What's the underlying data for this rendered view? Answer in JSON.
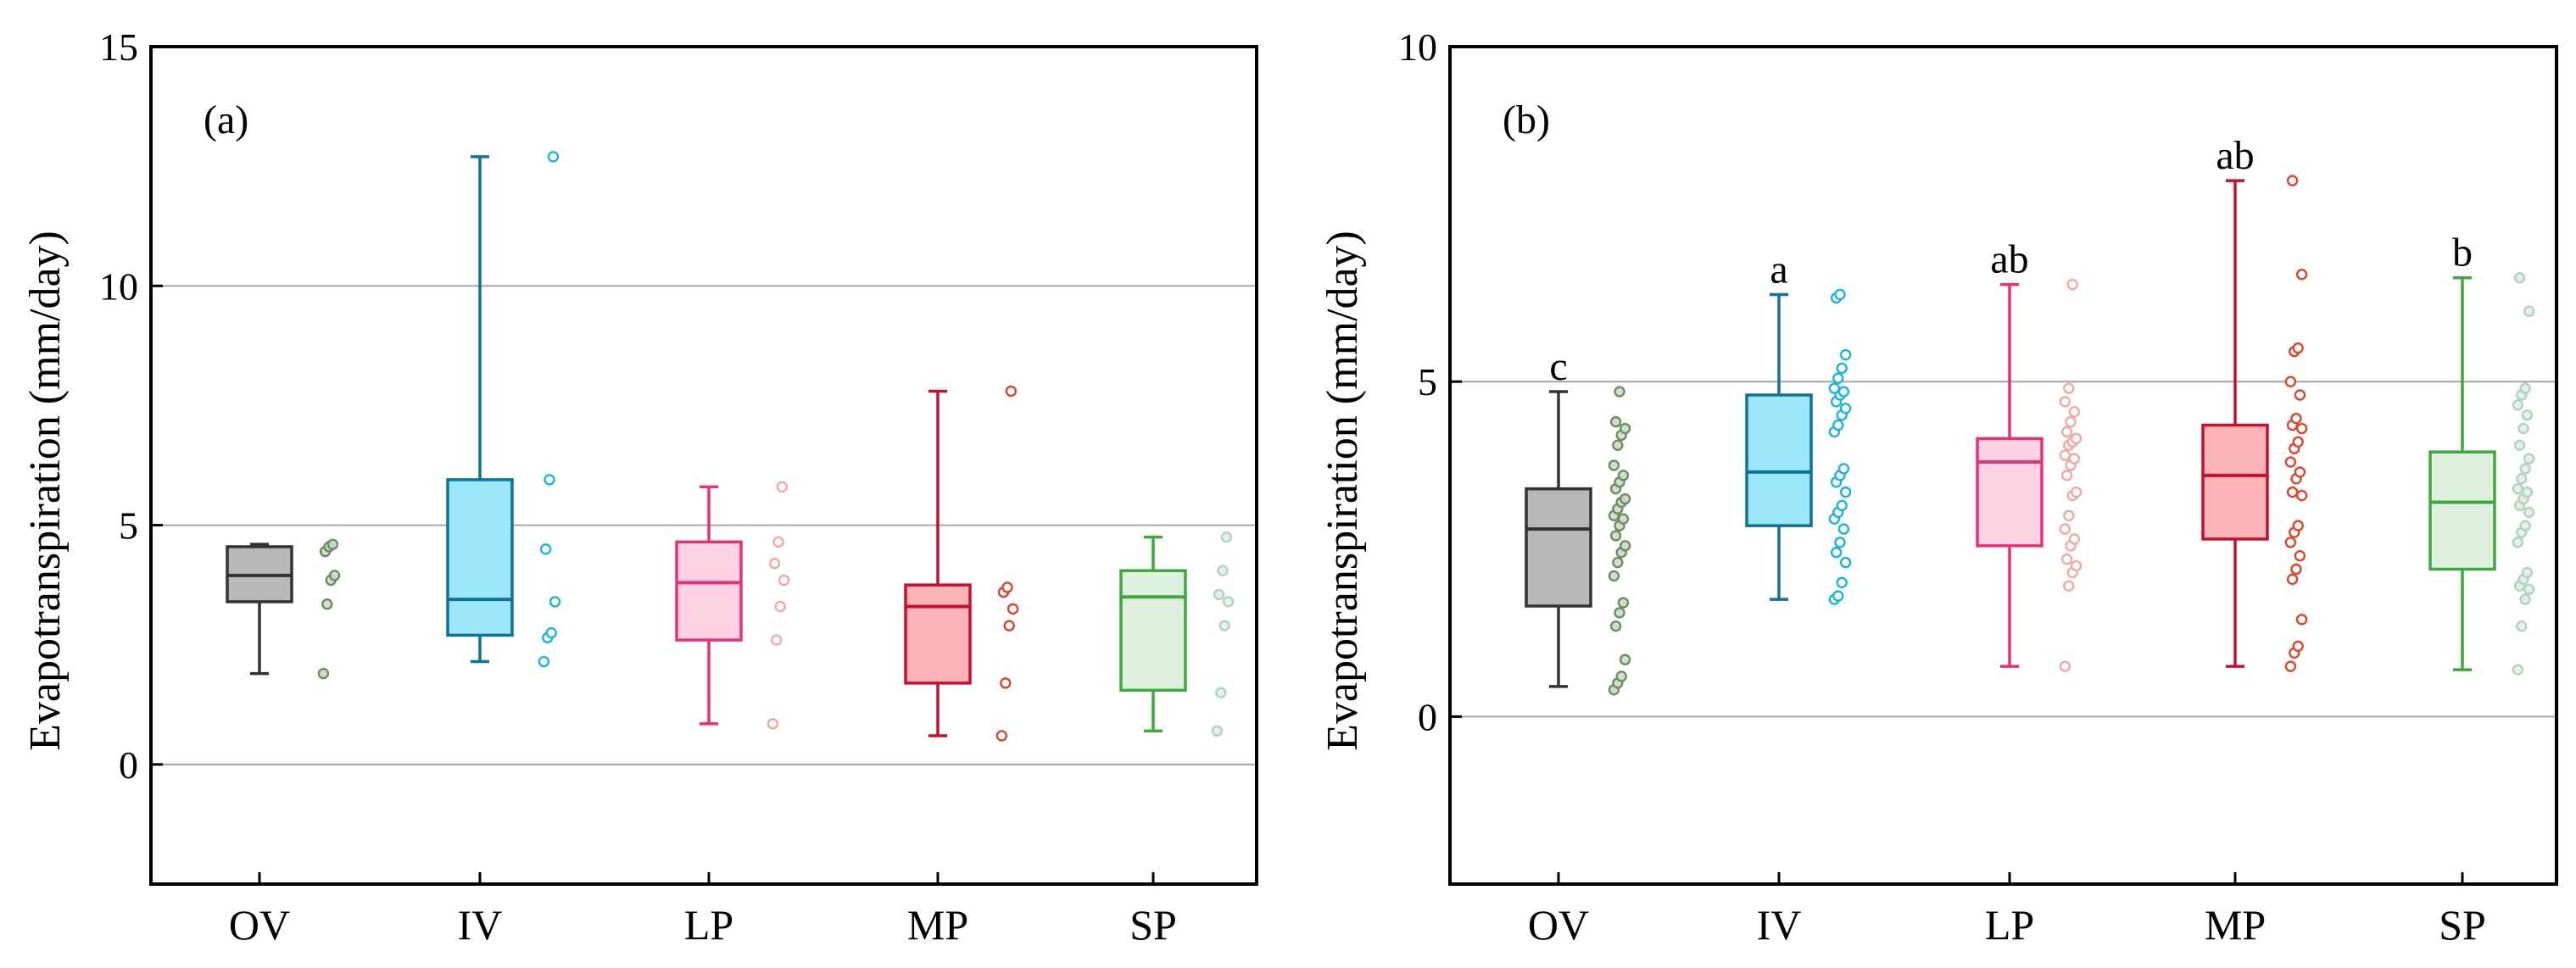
{
  "chart_data": [
    {
      "type": "box",
      "panel_label": "(a)",
      "ylabel": "Evapotranspiration (mm/day)",
      "ylim": [
        -2.5,
        15
      ],
      "yticks": [
        0,
        5,
        10,
        15
      ],
      "ytick_labels": [
        "0",
        "5",
        "10",
        "15"
      ],
      "grid": "horizontal",
      "categories": [
        "OV",
        "IV",
        "LP",
        "MP",
        "SP"
      ],
      "colors": [
        {
          "line": "#333333",
          "fill": "#b8b8b8",
          "point": "#6b8e63"
        },
        {
          "line": "#0e7398",
          "fill": "#9be6f8",
          "point": "#18b4e3"
        },
        {
          "line": "#e8307a",
          "fill": "#fdd3e4",
          "point": "#f4a8a3"
        },
        {
          "line": "#c8102e",
          "fill": "#fbb4b8",
          "point": "#e0442a"
        },
        {
          "line": "#3ea83e",
          "fill": "#ddf0dd",
          "point": "#b2d2be"
        }
      ],
      "boxes": [
        {
          "min": 1.9,
          "q1": 3.4,
          "median": 3.95,
          "q3": 4.55,
          "max": 4.6,
          "sig": ""
        },
        {
          "min": 2.15,
          "q1": 2.7,
          "median": 3.45,
          "q3": 5.95,
          "max": 12.7,
          "sig": ""
        },
        {
          "min": 0.85,
          "q1": 2.6,
          "median": 3.8,
          "q3": 4.65,
          "max": 5.8,
          "sig": ""
        },
        {
          "min": 0.6,
          "q1": 1.7,
          "median": 3.3,
          "q3": 3.75,
          "max": 7.8,
          "sig": ""
        },
        {
          "min": 0.7,
          "q1": 1.55,
          "median": 3.5,
          "q3": 4.05,
          "max": 4.75,
          "sig": ""
        }
      ],
      "points": [
        [
          1.9,
          3.35,
          3.85,
          3.95,
          4.45,
          4.55,
          4.6
        ],
        [
          2.15,
          2.65,
          2.75,
          3.4,
          4.5,
          5.95,
          12.7
        ],
        [
          0.85,
          2.6,
          3.3,
          3.85,
          4.2,
          4.65,
          5.8
        ],
        [
          0.6,
          1.7,
          2.9,
          3.25,
          3.6,
          3.7,
          7.8
        ],
        [
          0.7,
          1.5,
          2.9,
          3.4,
          3.55,
          4.05,
          4.75
        ]
      ]
    },
    {
      "type": "box",
      "panel_label": "(b)",
      "ylabel": "Evapotranspiration (mm/day)",
      "ylim": [
        -2.5,
        10
      ],
      "yticks": [
        0,
        5,
        10
      ],
      "ytick_labels": [
        "0",
        "5",
        "10"
      ],
      "grid": "horizontal",
      "categories": [
        "OV",
        "IV",
        "LP",
        "MP",
        "SP"
      ],
      "colors": [
        {
          "line": "#333333",
          "fill": "#b8b8b8",
          "point": "#6b8e63"
        },
        {
          "line": "#0e7398",
          "fill": "#9be6f8",
          "point": "#18b4e3"
        },
        {
          "line": "#e8307a",
          "fill": "#fdd3e4",
          "point": "#f4a8a3"
        },
        {
          "line": "#c8102e",
          "fill": "#fbb4b8",
          "point": "#e0442a"
        },
        {
          "line": "#3ea83e",
          "fill": "#ddf0dd",
          "point": "#b2d2be"
        }
      ],
      "boxes": [
        {
          "min": 0.45,
          "q1": 1.65,
          "median": 2.8,
          "q3": 3.4,
          "max": 4.85,
          "sig": "c"
        },
        {
          "min": 1.75,
          "q1": 2.85,
          "median": 3.65,
          "q3": 4.8,
          "max": 6.3,
          "sig": "a"
        },
        {
          "min": 0.75,
          "q1": 2.55,
          "median": 3.8,
          "q3": 4.15,
          "max": 6.45,
          "sig": "ab"
        },
        {
          "min": 0.75,
          "q1": 2.65,
          "median": 3.6,
          "q3": 4.35,
          "max": 8.0,
          "sig": "ab"
        },
        {
          "min": 0.7,
          "q1": 2.2,
          "median": 3.2,
          "q3": 3.95,
          "max": 6.55,
          "sig": "b"
        }
      ],
      "points": [
        [
          0.4,
          0.5,
          0.6,
          0.85,
          1.35,
          1.55,
          1.7,
          2.1,
          2.3,
          2.45,
          2.55,
          2.7,
          2.85,
          2.95,
          3.0,
          3.1,
          3.2,
          3.25,
          3.4,
          3.5,
          3.6,
          3.75,
          4.05,
          4.2,
          4.3,
          4.4,
          4.85
        ],
        [
          1.75,
          1.8,
          2.0,
          2.3,
          2.45,
          2.6,
          2.8,
          2.95,
          3.05,
          3.15,
          3.35,
          3.5,
          3.6,
          3.7,
          4.25,
          4.35,
          4.5,
          4.6,
          4.7,
          4.8,
          4.85,
          4.9,
          5.05,
          5.2,
          5.4,
          6.25,
          6.3
        ],
        [
          0.75,
          1.95,
          2.15,
          2.25,
          2.35,
          2.55,
          2.65,
          2.8,
          3.0,
          3.3,
          3.35,
          3.6,
          3.75,
          3.85,
          3.9,
          4.05,
          4.1,
          4.15,
          4.25,
          4.4,
          4.55,
          4.7,
          4.9,
          6.45
        ],
        [
          0.75,
          0.95,
          1.05,
          1.45,
          2.05,
          2.2,
          2.4,
          2.6,
          2.75,
          2.85,
          3.3,
          3.35,
          3.55,
          3.65,
          3.8,
          4.0,
          4.1,
          4.3,
          4.35,
          4.45,
          4.8,
          5.0,
          5.45,
          5.5,
          6.6,
          8.0
        ],
        [
          0.7,
          1.35,
          1.75,
          1.9,
          1.95,
          2.05,
          2.15,
          2.6,
          2.75,
          2.85,
          3.05,
          3.15,
          3.25,
          3.35,
          3.4,
          3.55,
          3.7,
          3.85,
          4.05,
          4.3,
          4.5,
          4.65,
          4.8,
          4.9,
          6.05,
          6.55
        ]
      ]
    }
  ]
}
